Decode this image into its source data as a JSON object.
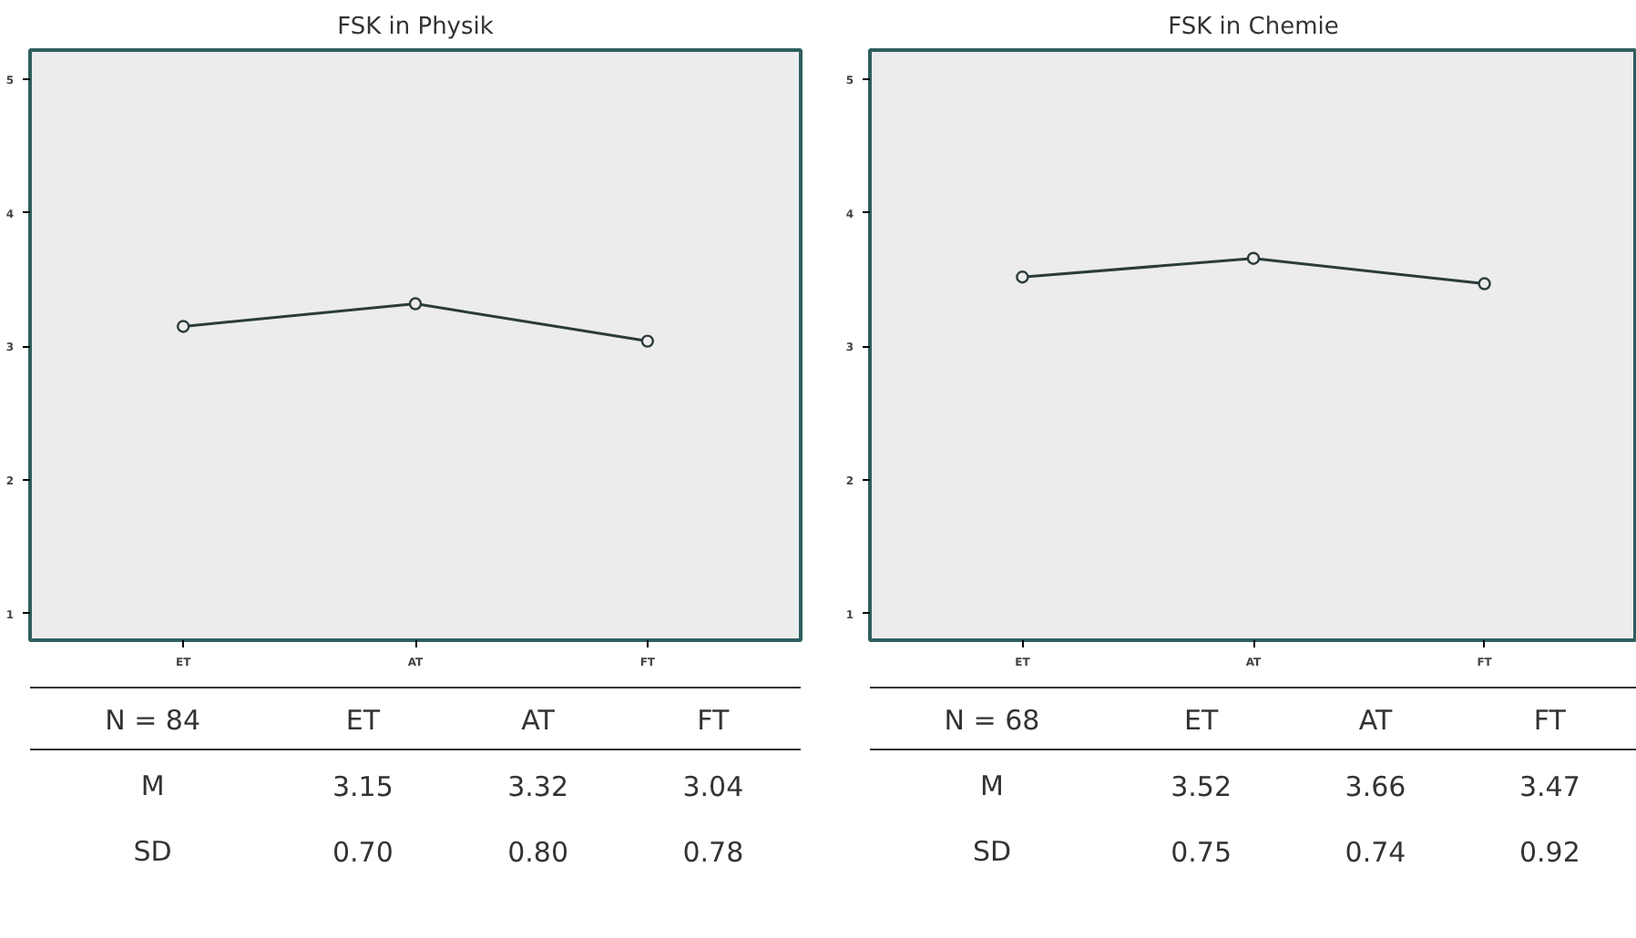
{
  "chart_data": [
    {
      "type": "line",
      "title": "FSK in Physik",
      "categories": [
        "ET",
        "AT",
        "FT"
      ],
      "series": [
        {
          "color": "#2b3b3b",
          "values": [
            3.15,
            3.32,
            3.04
          ]
        }
      ],
      "ylim": [
        0.8,
        5.22
      ],
      "yticks": [
        1,
        2,
        3,
        4,
        5
      ],
      "marker": "circle",
      "line_style": "solid",
      "grid": false,
      "annotations": [
        "N = 84",
        "M",
        "SD",
        "3.15",
        "3.32",
        "3.04",
        "0.70",
        "0.80",
        "0.78"
      ]
    },
    {
      "type": "line",
      "title": "FSK in Chemie",
      "categories": [
        "ET",
        "AT",
        "FT"
      ],
      "series": [
        {
          "color": "#2b3b3b",
          "values": [
            3.52,
            3.66,
            3.47
          ]
        }
      ],
      "ylim": [
        0.8,
        5.22
      ],
      "yticks": [
        1,
        2,
        3,
        4,
        5
      ],
      "marker": "circle",
      "line_style": "solid",
      "grid": false,
      "annotations": [
        "N = 68",
        "M",
        "SD",
        "3.52",
        "3.66",
        "3.47",
        "0.75",
        "0.74",
        "0.92"
      ]
    }
  ]
}
